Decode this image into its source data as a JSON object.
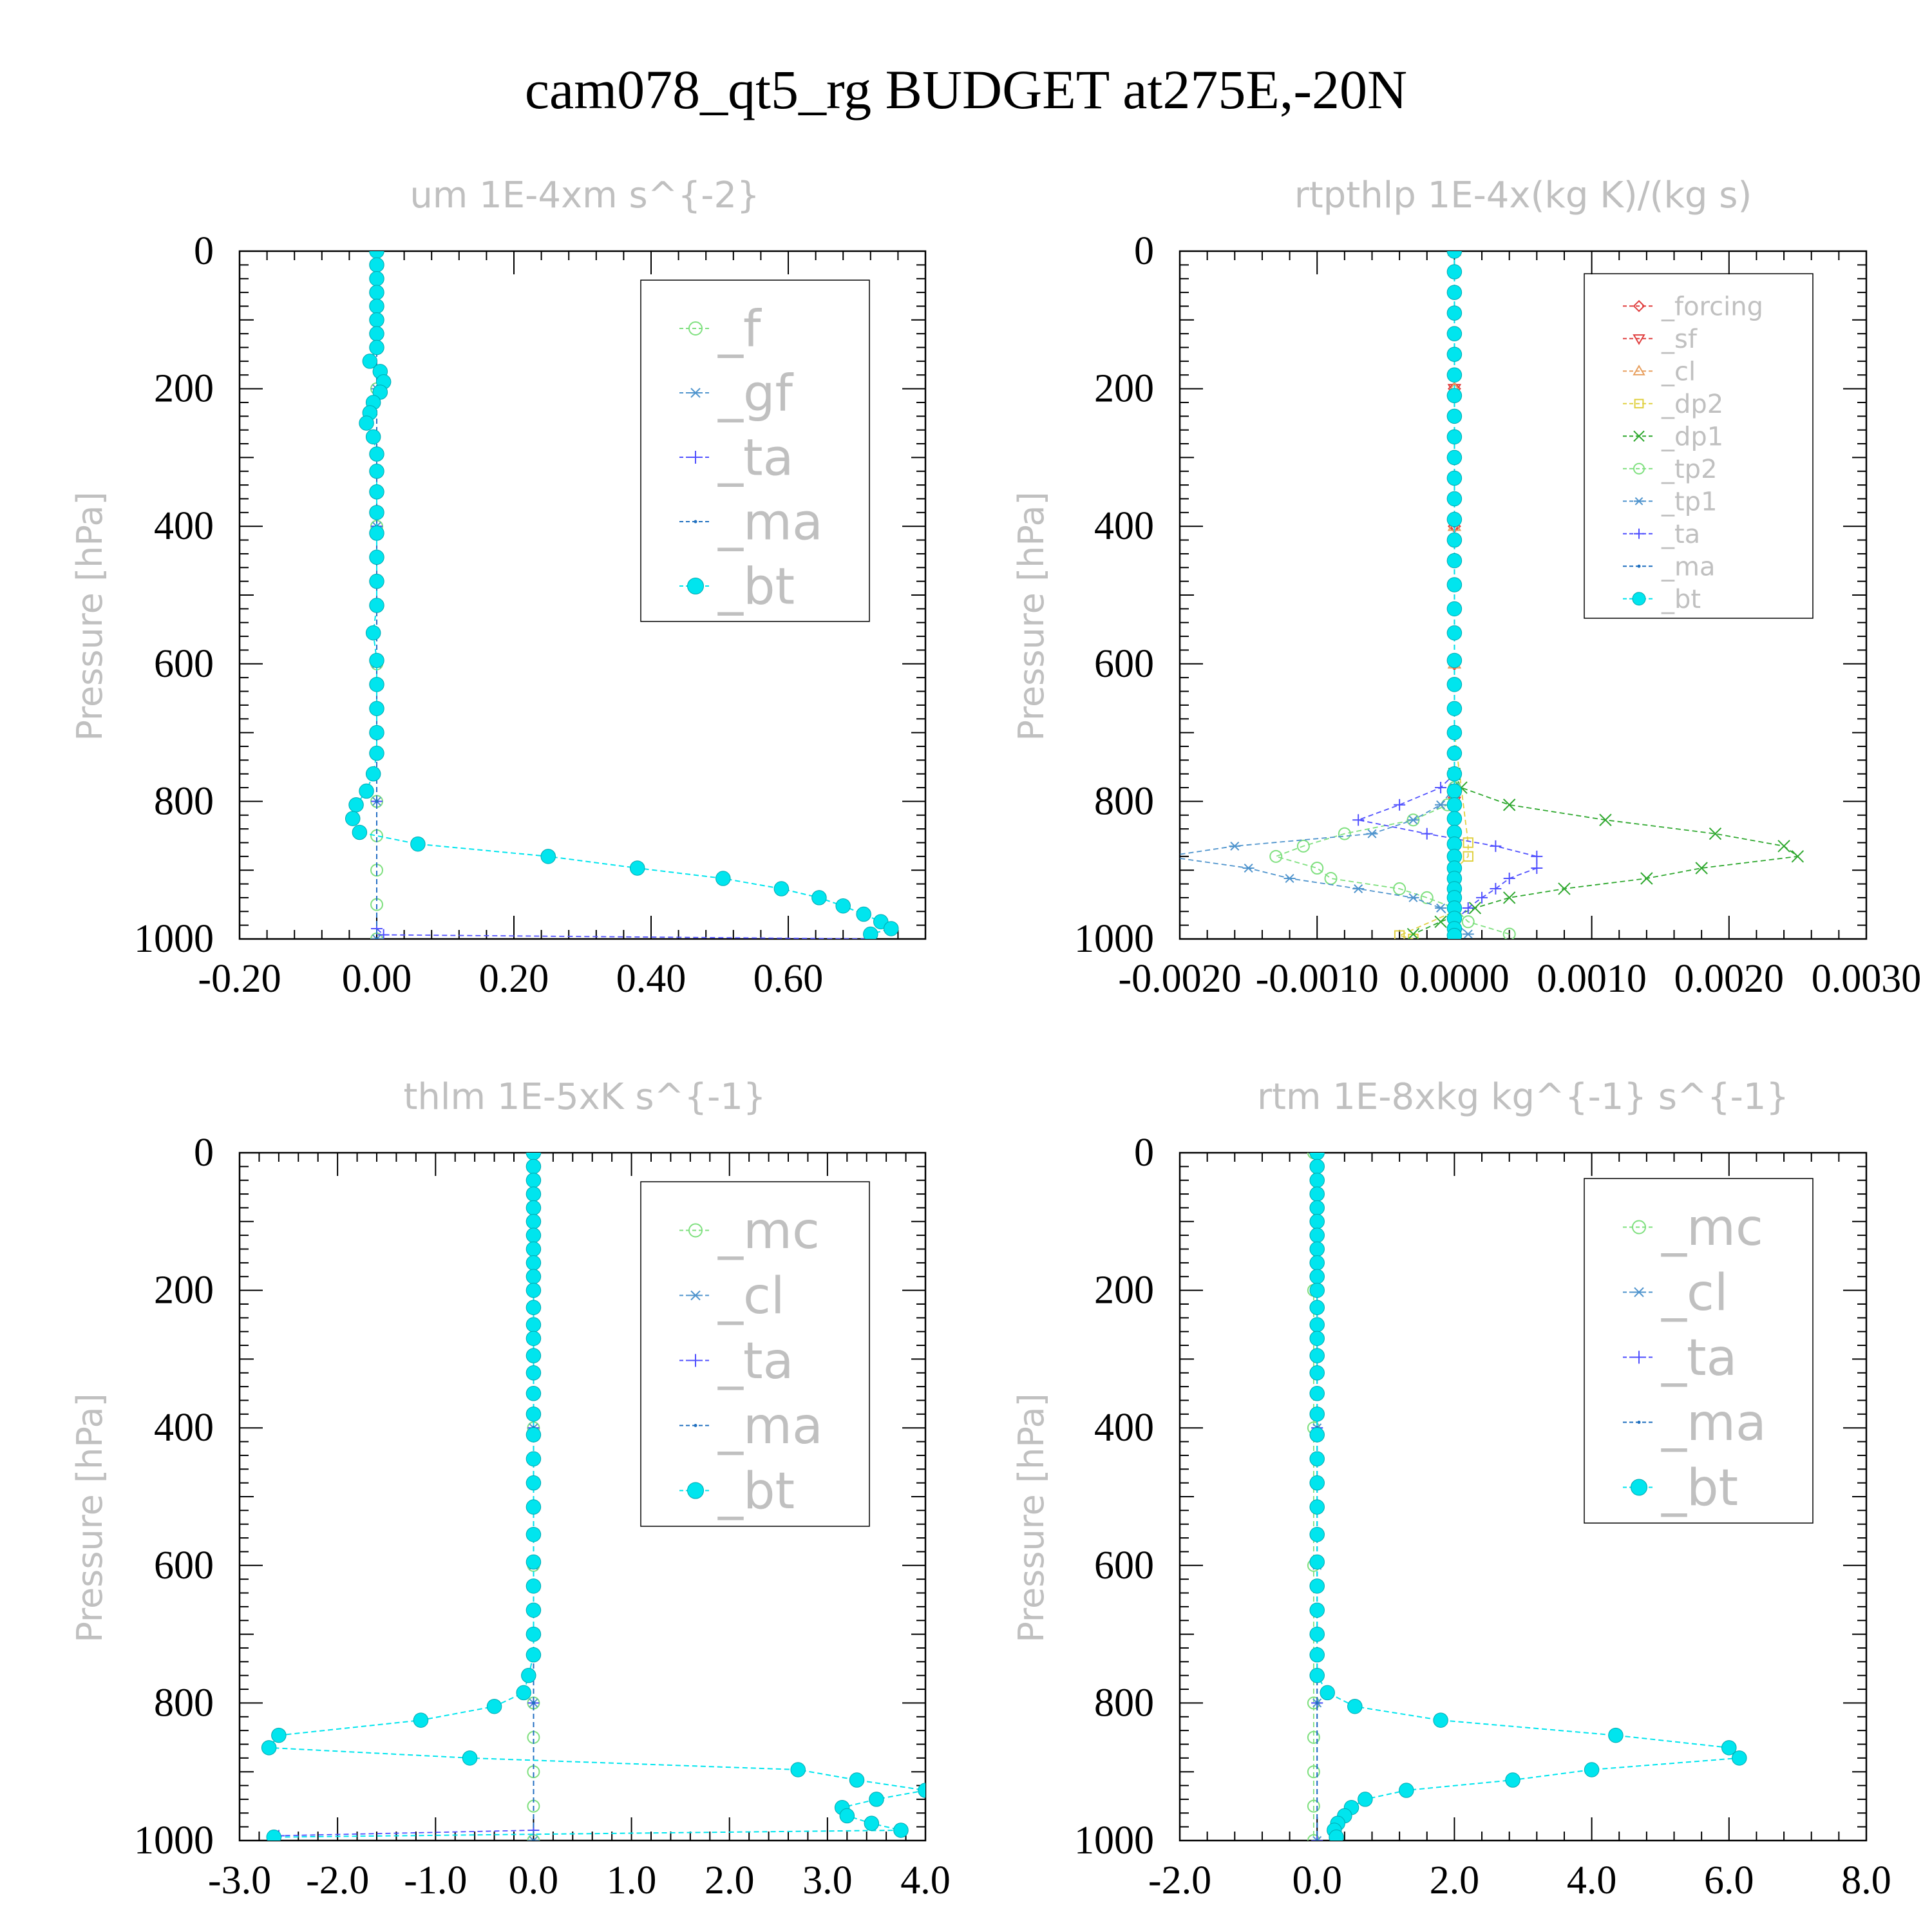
{
  "title": "cam078_qt5_rg  BUDGET at275E,-20N",
  "charts": [
    {
      "type": "line",
      "title": "um  1E-4xm s^{-2}",
      "ylabel": "Pressure [hPa]",
      "xlim": [
        -0.2,
        0.8
      ],
      "ylim": [
        1000,
        0
      ],
      "xticks": [
        "-0.20",
        "0.00",
        "0.20",
        "0.40",
        "0.60"
      ],
      "xtick_values": [
        -0.2,
        0.0,
        0.2,
        0.4,
        0.6
      ],
      "yticks": [
        "0",
        "200",
        "400",
        "600",
        "800",
        "1000"
      ],
      "ytick_values": [
        0,
        200,
        400,
        600,
        800,
        1000
      ],
      "legend_font": 78,
      "legend": [
        "_f",
        "_gf",
        "_ta",
        "_ma",
        "_bt"
      ],
      "series": [
        {
          "name": "_f",
          "color": "#7fe07f",
          "marker": "circle",
          "p": [
            0,
            200,
            400,
            600,
            800,
            850,
            900,
            950,
            1000
          ],
          "x": [
            0,
            0,
            0,
            0,
            0,
            0,
            0,
            0,
            0
          ]
        },
        {
          "name": "_gf",
          "color": "#4f94cd",
          "marker": "star",
          "p": [
            0,
            200,
            400,
            600,
            800,
            1000
          ],
          "x": [
            0,
            0,
            0,
            0,
            0,
            0
          ]
        },
        {
          "name": "_ta",
          "color": "#5050ff",
          "marker": "plus",
          "p": [
            0,
            400,
            800,
            985,
            994,
            1000
          ],
          "x": [
            0,
            0,
            0,
            0,
            0.01,
            0.72
          ]
        },
        {
          "name": "_ma",
          "color": "#1f6fbf",
          "marker": "dot",
          "p": [
            0,
            200,
            400,
            800,
            1000
          ],
          "x": [
            0,
            0,
            0,
            0,
            0
          ]
        },
        {
          "name": "_bt",
          "color": "#00e5ee",
          "marker": "bigdot",
          "p": [
            0,
            20,
            40,
            60,
            80,
            100,
            120,
            140,
            160,
            175,
            190,
            205,
            220,
            235,
            250,
            270,
            295,
            320,
            350,
            380,
            410,
            445,
            480,
            515,
            555,
            595,
            630,
            665,
            700,
            730,
            760,
            785,
            805,
            825,
            845,
            862,
            880,
            897,
            912,
            927,
            940,
            952,
            964,
            975,
            985,
            993
          ],
          "x": [
            0,
            0,
            0,
            0,
            0,
            0,
            0,
            0,
            -0.01,
            0.005,
            0.01,
            0.005,
            -0.005,
            -0.01,
            -0.015,
            -0.005,
            0,
            0,
            0,
            0,
            0,
            0,
            0,
            0,
            -0.005,
            0,
            0,
            0,
            0,
            0,
            -0.005,
            -0.015,
            -0.03,
            -0.035,
            -0.025,
            0.06,
            0.25,
            0.38,
            0.505,
            0.59,
            0.645,
            0.68,
            0.71,
            0.735,
            0.75,
            0.72
          ]
        }
      ]
    },
    {
      "type": "line",
      "title": "rtpthlp  1E-4x(kg K)/(kg s)",
      "ylabel": "Pressure [hPa]",
      "xlim": [
        -0.002,
        0.003
      ],
      "ylim": [
        1000,
        0
      ],
      "xticks": [
        "-0.0020",
        "-0.0010",
        "0.0000",
        "0.0010",
        "0.0020",
        "0.0030"
      ],
      "xtick_values": [
        -0.002,
        -0.001,
        0.0,
        0.001,
        0.002,
        0.003
      ],
      "yticks": [
        "0",
        "200",
        "400",
        "600",
        "800",
        "1000"
      ],
      "ytick_values": [
        0,
        200,
        400,
        600,
        800,
        1000
      ],
      "legend_font": 40,
      "legend": [
        "_forcing",
        "_sf",
        "_cl",
        "_dp2",
        "_dp1",
        "_tp2",
        "_tp1",
        "_ta",
        "_ma",
        "_bt"
      ],
      "series": [
        {
          "name": "_forcing",
          "color": "#e04040",
          "marker": "diamond",
          "p": [
            0,
            200,
            400,
            600,
            800,
            1000
          ],
          "x": [
            0,
            0,
            0,
            0,
            0,
            0
          ]
        },
        {
          "name": "_sf",
          "color": "#e04040",
          "marker": "tri-down",
          "p": [
            0,
            200,
            400,
            600,
            800,
            1000
          ],
          "x": [
            0,
            0,
            0,
            0,
            0,
            0
          ]
        },
        {
          "name": "_cl",
          "color": "#e8a060",
          "marker": "tri-up",
          "p": [
            0,
            200,
            400,
            600,
            800,
            1000
          ],
          "x": [
            0,
            0,
            0,
            0,
            0,
            0
          ]
        },
        {
          "name": "_dp2",
          "color": "#e0d040",
          "marker": "square",
          "p": [
            0,
            700,
            860,
            880,
            900,
            960,
            995,
            1000
          ],
          "x": [
            0,
            0,
            0.0001,
            0.0001,
            0,
            0,
            -0.0004,
            -0.0003
          ]
        },
        {
          "name": "_dp1",
          "color": "#2fa82f",
          "marker": "cross",
          "p": [
            760,
            780,
            805,
            827,
            847,
            865,
            880,
            897,
            912,
            927,
            940,
            955,
            975,
            993
          ],
          "x": [
            0,
            5e-05,
            0.0004,
            0.0011,
            0.0019,
            0.0024,
            0.0025,
            0.0018,
            0.0014,
            0.0008,
            0.0004,
            0.00015,
            -0.0001,
            -0.0003
          ]
        },
        {
          "name": "_tp2",
          "color": "#7fe07f",
          "marker": "circle",
          "p": [
            780,
            805,
            827,
            847,
            865,
            880,
            897,
            912,
            927,
            940,
            955,
            975,
            993
          ],
          "x": [
            0,
            -5e-05,
            -0.0003,
            -0.0008,
            -0.0011,
            -0.0013,
            -0.001,
            -0.0009,
            -0.0004,
            -0.0002,
            0,
            0.0001,
            0.0004
          ]
        },
        {
          "name": "_tp1",
          "color": "#4f94cd",
          "marker": "star",
          "p": [
            780,
            805,
            827,
            847,
            865,
            880,
            897,
            912,
            927,
            940,
            955,
            975,
            993
          ],
          "x": [
            0,
            -0.0001,
            -0.0003,
            -0.0006,
            -0.0016,
            -0.0021,
            -0.0015,
            -0.0012,
            -0.0007,
            -0.0003,
            -0.0001,
            0,
            0.0001
          ]
        },
        {
          "name": "_ta",
          "color": "#5050ff",
          "marker": "plus",
          "p": [
            760,
            780,
            805,
            827,
            847,
            865,
            880,
            897,
            912,
            927,
            940,
            955,
            975
          ],
          "x": [
            0,
            -0.0001,
            -0.0004,
            -0.0007,
            -0.0002,
            0.0003,
            0.0006,
            0.0006,
            0.0004,
            0.0003,
            0.0002,
            0.0001,
            0
          ]
        },
        {
          "name": "_ma",
          "color": "#1f6fbf",
          "marker": "dot",
          "p": [
            0,
            400,
            800,
            1000
          ],
          "x": [
            0,
            0,
            0,
            0
          ]
        },
        {
          "name": "_bt",
          "color": "#00e5ee",
          "marker": "bigdot",
          "p": [
            0,
            30,
            60,
            90,
            120,
            150,
            180,
            210,
            240,
            270,
            300,
            330,
            360,
            390,
            420,
            450,
            485,
            520,
            555,
            595,
            630,
            665,
            700,
            730,
            760,
            785,
            805,
            825,
            845,
            862,
            880,
            897,
            912,
            927,
            940,
            955,
            970,
            985,
            995
          ],
          "x": [
            0,
            0,
            0,
            0,
            0,
            0,
            0,
            0,
            0,
            0,
            0,
            0,
            0,
            0,
            0,
            0,
            0,
            0,
            0,
            0,
            0,
            0,
            0,
            0,
            0,
            0,
            0,
            0,
            0,
            0,
            0,
            0,
            0,
            0,
            0,
            0,
            0,
            0,
            0
          ]
        }
      ]
    },
    {
      "type": "line",
      "title": "thlm  1E-5xK s^{-1}",
      "ylabel": "Pressure [hPa]",
      "xlim": [
        -3.0,
        4.0
      ],
      "ylim": [
        1000,
        0
      ],
      "xticks": [
        "-3.0",
        "-2.0",
        "-1.0",
        "0.0",
        "1.0",
        "2.0",
        "3.0",
        "4.0"
      ],
      "xtick_values": [
        -3,
        -2,
        -1,
        0,
        1,
        2,
        3,
        4
      ],
      "yticks": [
        "0",
        "200",
        "400",
        "600",
        "800",
        "1000"
      ],
      "ytick_values": [
        0,
        200,
        400,
        600,
        800,
        1000
      ],
      "legend_font": 78,
      "legend": [
        "_mc",
        "_cl",
        "_ta",
        "_ma",
        "_bt"
      ],
      "series": [
        {
          "name": "_mc",
          "color": "#7fe07f",
          "marker": "circle",
          "p": [
            0,
            200,
            400,
            600,
            800,
            850,
            900,
            950,
            1000
          ],
          "x": [
            0,
            0,
            0,
            0,
            0,
            0,
            0,
            0,
            0
          ]
        },
        {
          "name": "_cl",
          "color": "#4f94cd",
          "marker": "star",
          "p": [
            0,
            200,
            400,
            600,
            800,
            1000
          ],
          "x": [
            0,
            0,
            0,
            0,
            0,
            0
          ]
        },
        {
          "name": "_ta",
          "color": "#5050ff",
          "marker": "plus",
          "p": [
            0,
            400,
            800,
            985,
            993,
            1000
          ],
          "x": [
            0,
            0,
            0,
            0,
            -2.6,
            -2.65
          ]
        },
        {
          "name": "_ma",
          "color": "#1f6fbf",
          "marker": "dot",
          "p": [
            0,
            400,
            800,
            1000
          ],
          "x": [
            0,
            0,
            0,
            0
          ]
        },
        {
          "name": "_bt",
          "color": "#00e5ee",
          "marker": "bigdot",
          "p": [
            0,
            20,
            40,
            60,
            80,
            100,
            120,
            140,
            160,
            180,
            200,
            225,
            250,
            270,
            295,
            320,
            350,
            380,
            410,
            445,
            480,
            515,
            555,
            595,
            630,
            665,
            700,
            730,
            760,
            785,
            805,
            825,
            847,
            865,
            880,
            897,
            912,
            927,
            940,
            952,
            964,
            975,
            985,
            995
          ],
          "x": [
            0,
            0,
            0,
            0,
            0,
            0,
            0,
            0,
            0,
            0,
            0,
            0,
            0,
            0,
            0,
            0,
            0,
            0,
            0,
            0,
            0,
            0,
            0,
            0,
            0,
            0,
            0,
            0,
            -0.05,
            -0.1,
            -0.4,
            -1.15,
            -2.6,
            -2.7,
            -0.65,
            2.7,
            3.3,
            4.0,
            3.5,
            3.15,
            3.2,
            3.45,
            3.75,
            -2.65
          ]
        }
      ]
    },
    {
      "type": "line",
      "title": "rtm  1E-8xkg kg^{-1} s^{-1}",
      "ylabel": "Pressure [hPa]",
      "xlim": [
        -2.0,
        8.0
      ],
      "ylim": [
        1000,
        0
      ],
      "xticks": [
        "-2.0",
        "0.0",
        "2.0",
        "4.0",
        "6.0",
        "8.0"
      ],
      "xtick_values": [
        -2,
        0,
        2,
        4,
        6,
        8
      ],
      "yticks": [
        "0",
        "200",
        "400",
        "600",
        "800",
        "1000"
      ],
      "ytick_values": [
        0,
        200,
        400,
        600,
        800,
        1000
      ],
      "legend_font": 78,
      "legend": [
        "_mc",
        "_cl",
        "_ta",
        "_ma",
        "_bt"
      ],
      "series": [
        {
          "name": "_mc",
          "color": "#7fe07f",
          "marker": "circle",
          "p": [
            0,
            200,
            400,
            600,
            800,
            850,
            900,
            950,
            1000
          ],
          "x": [
            -0.05,
            -0.05,
            -0.05,
            -0.05,
            -0.05,
            -0.05,
            -0.05,
            -0.05,
            -0.05
          ]
        },
        {
          "name": "_cl",
          "color": "#4f94cd",
          "marker": "star",
          "p": [
            0,
            200,
            400,
            600,
            800,
            1000
          ],
          "x": [
            0,
            0,
            0,
            0,
            0,
            0
          ]
        },
        {
          "name": "_ta",
          "color": "#5050ff",
          "marker": "plus",
          "p": [
            0,
            400,
            800,
            1000
          ],
          "x": [
            0,
            0,
            0,
            0
          ]
        },
        {
          "name": "_ma",
          "color": "#1f6fbf",
          "marker": "dot",
          "p": [
            0,
            400,
            800,
            1000
          ],
          "x": [
            0,
            0,
            0,
            0
          ]
        },
        {
          "name": "_bt",
          "color": "#00e5ee",
          "marker": "bigdot",
          "p": [
            0,
            20,
            40,
            60,
            80,
            100,
            120,
            140,
            160,
            180,
            200,
            225,
            250,
            270,
            295,
            320,
            350,
            380,
            410,
            445,
            480,
            515,
            555,
            595,
            630,
            665,
            700,
            730,
            760,
            785,
            805,
            825,
            847,
            865,
            880,
            897,
            912,
            927,
            940,
            952,
            964,
            975,
            985,
            995
          ],
          "x": [
            0,
            0,
            0,
            0,
            0,
            0,
            0,
            0,
            0,
            0,
            0,
            0,
            0,
            0,
            0,
            0,
            0,
            0,
            0,
            0,
            0,
            0,
            0,
            0,
            0,
            0,
            0,
            0,
            0,
            0.15,
            0.55,
            1.8,
            4.35,
            6.0,
            6.15,
            4.0,
            2.85,
            1.3,
            0.7,
            0.5,
            0.4,
            0.3,
            0.25,
            0.28
          ]
        }
      ]
    }
  ]
}
